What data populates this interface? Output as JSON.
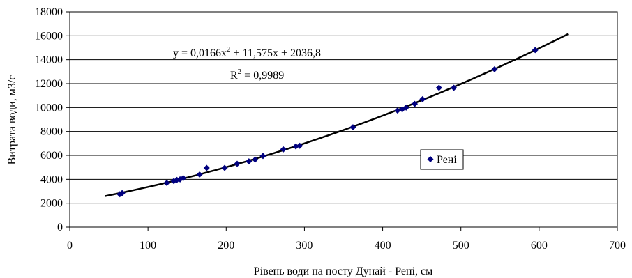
{
  "chart_data": {
    "type": "scatter",
    "xlabel": "Рівень води на посту Дунай - Рені, см",
    "ylabel": "Витрата води, м3/с",
    "xlim": [
      0,
      700
    ],
    "ylim": [
      0,
      18000
    ],
    "x_ticks": [
      "0",
      "100",
      "200",
      "300",
      "400",
      "500",
      "600",
      "700"
    ],
    "y_ticks": [
      "0",
      "2000",
      "4000",
      "6000",
      "8000",
      "10000",
      "12000",
      "14000",
      "16000",
      "18000"
    ],
    "x_tick_values": [
      0,
      100,
      200,
      300,
      400,
      500,
      600,
      700
    ],
    "y_tick_values": [
      0,
      2000,
      4000,
      6000,
      8000,
      10000,
      12000,
      14000,
      16000,
      18000
    ],
    "grid": "horizontal",
    "legend_position": "right",
    "series": [
      {
        "name": "Рені",
        "marker": "diamond",
        "color": "#00007f",
        "points": [
          [
            64,
            2750
          ],
          [
            67,
            2850
          ],
          [
            124,
            3700
          ],
          [
            133,
            3850
          ],
          [
            137,
            3950
          ],
          [
            141,
            4000
          ],
          [
            145,
            4100
          ],
          [
            166,
            4400
          ],
          [
            175,
            4950
          ],
          [
            198,
            4950
          ],
          [
            214,
            5300
          ],
          [
            229,
            5500
          ],
          [
            237,
            5650
          ],
          [
            247,
            5950
          ],
          [
            273,
            6500
          ],
          [
            289,
            6750
          ],
          [
            294,
            6800
          ],
          [
            362,
            8350
          ],
          [
            419,
            9750
          ],
          [
            425,
            9850
          ],
          [
            430,
            10000
          ],
          [
            441,
            10300
          ],
          [
            451,
            10700
          ],
          [
            472,
            11650
          ],
          [
            491,
            11650
          ],
          [
            543,
            13200
          ],
          [
            595,
            14800
          ]
        ]
      }
    ],
    "trendline": {
      "type": "polynomial",
      "coefficients": [
        0.0166,
        11.575,
        2036.8
      ],
      "x_range": [
        45,
        637
      ],
      "color": "#000000"
    },
    "annotations": {
      "equation_main": "y = 0,0166x",
      "equation_exp": "2",
      "equation_rest": " + 11,575x + 2036,8",
      "r2_main": "R",
      "r2_exp": "2",
      "r2_rest": " = 0,9989"
    }
  }
}
